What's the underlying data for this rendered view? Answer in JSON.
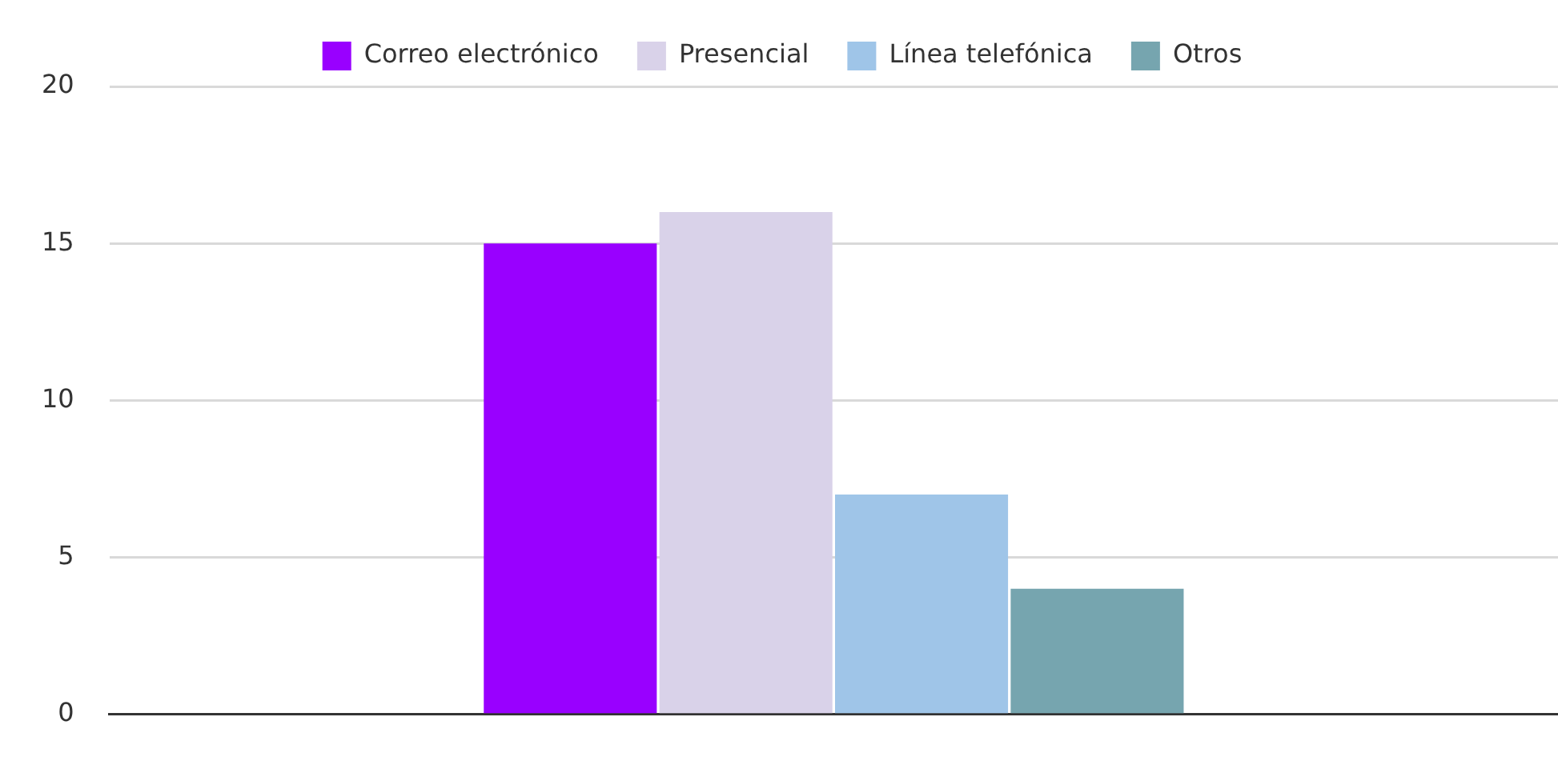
{
  "chart_data": {
    "type": "bar",
    "categories": [
      null
    ],
    "series": [
      {
        "name": "Correo electrónico",
        "color": "#9900ff",
        "values": [
          15
        ]
      },
      {
        "name": "Presencial",
        "color": "#d9d2e9",
        "values": [
          16
        ]
      },
      {
        "name": "Línea telefónica",
        "color": "#9fc5e8",
        "values": [
          7
        ]
      },
      {
        "name": "Otros",
        "color": "#76a5af",
        "values": [
          4
        ]
      }
    ],
    "ylim": [
      0,
      20
    ],
    "yticks": [
      0,
      5,
      10,
      15,
      20
    ],
    "grid": "y",
    "legend": "top"
  }
}
